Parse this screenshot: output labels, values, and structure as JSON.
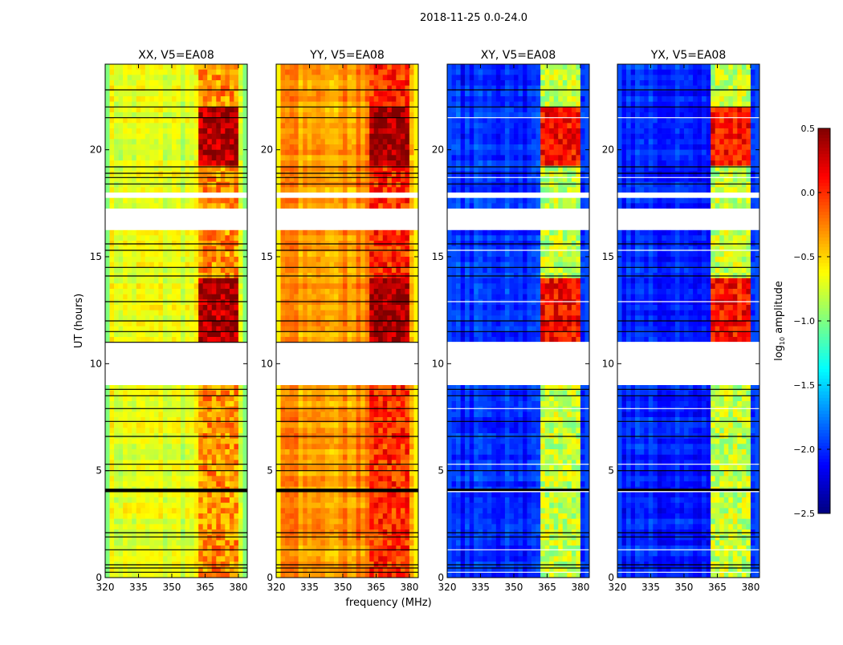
{
  "chart_data": {
    "type": "heatmap",
    "title": "2018-11-25 0.0-24.0",
    "xlabel": "frequency (MHz)",
    "ylabel": "UT (hours)",
    "xlim": [
      320,
      384
    ],
    "ylim": [
      0,
      24
    ],
    "xticks": [
      "320",
      "335",
      "350",
      "365",
      "380"
    ],
    "xtick_values": [
      320,
      335,
      350,
      365,
      380
    ],
    "yticks": [
      "0",
      "5",
      "10",
      "15",
      "20"
    ],
    "ytick_values": [
      0,
      5,
      10,
      15,
      20
    ],
    "colorbar": {
      "label": "log10 amplitude",
      "colormap": "jet",
      "range": [
        -2.5,
        0.5
      ],
      "ticks": [
        "0.5",
        "0.0",
        "−0.5",
        "−1.0",
        "−1.5",
        "−2.0",
        "−2.5"
      ],
      "tick_values": [
        0.5,
        0.0,
        -0.5,
        -1.0,
        -1.5,
        -2.0,
        -2.5
      ]
    },
    "flagged_time_ranges_hours": [
      [
        9.0,
        10.95
      ],
      [
        16.25,
        17.25
      ],
      [
        17.8,
        18.0
      ]
    ],
    "flagged_rows_hours": [
      0.25,
      0.45,
      0.6,
      1.3,
      1.9,
      2.1,
      4.05,
      4.1,
      5.0,
      5.3,
      6.6,
      7.3,
      7.9,
      8.5,
      8.8,
      11.0,
      11.5,
      12.0,
      12.9,
      14.1,
      14.5,
      15.3,
      15.6,
      18.4,
      18.7,
      18.9,
      19.2,
      21.5,
      22.0,
      22.8
    ],
    "rfi_band_mhz": [
      362,
      380
    ],
    "panels": [
      {
        "title": "XX, V5=EA08",
        "baseline": -0.7,
        "band": -0.3,
        "band_active": 0.35
      },
      {
        "title": "YY, V5=EA08",
        "baseline": -0.3,
        "band": 0.0,
        "band_active": 0.4
      },
      {
        "title": "XY, V5=EA08",
        "baseline": -2.0,
        "band": -0.8,
        "band_active": 0.1
      },
      {
        "title": "YX, V5=EA08",
        "baseline": -2.0,
        "band": -0.8,
        "band_active": 0.1
      }
    ],
    "active_time_ranges_hours": [
      [
        11.0,
        14.1
      ],
      [
        19.2,
        22.0
      ]
    ]
  }
}
